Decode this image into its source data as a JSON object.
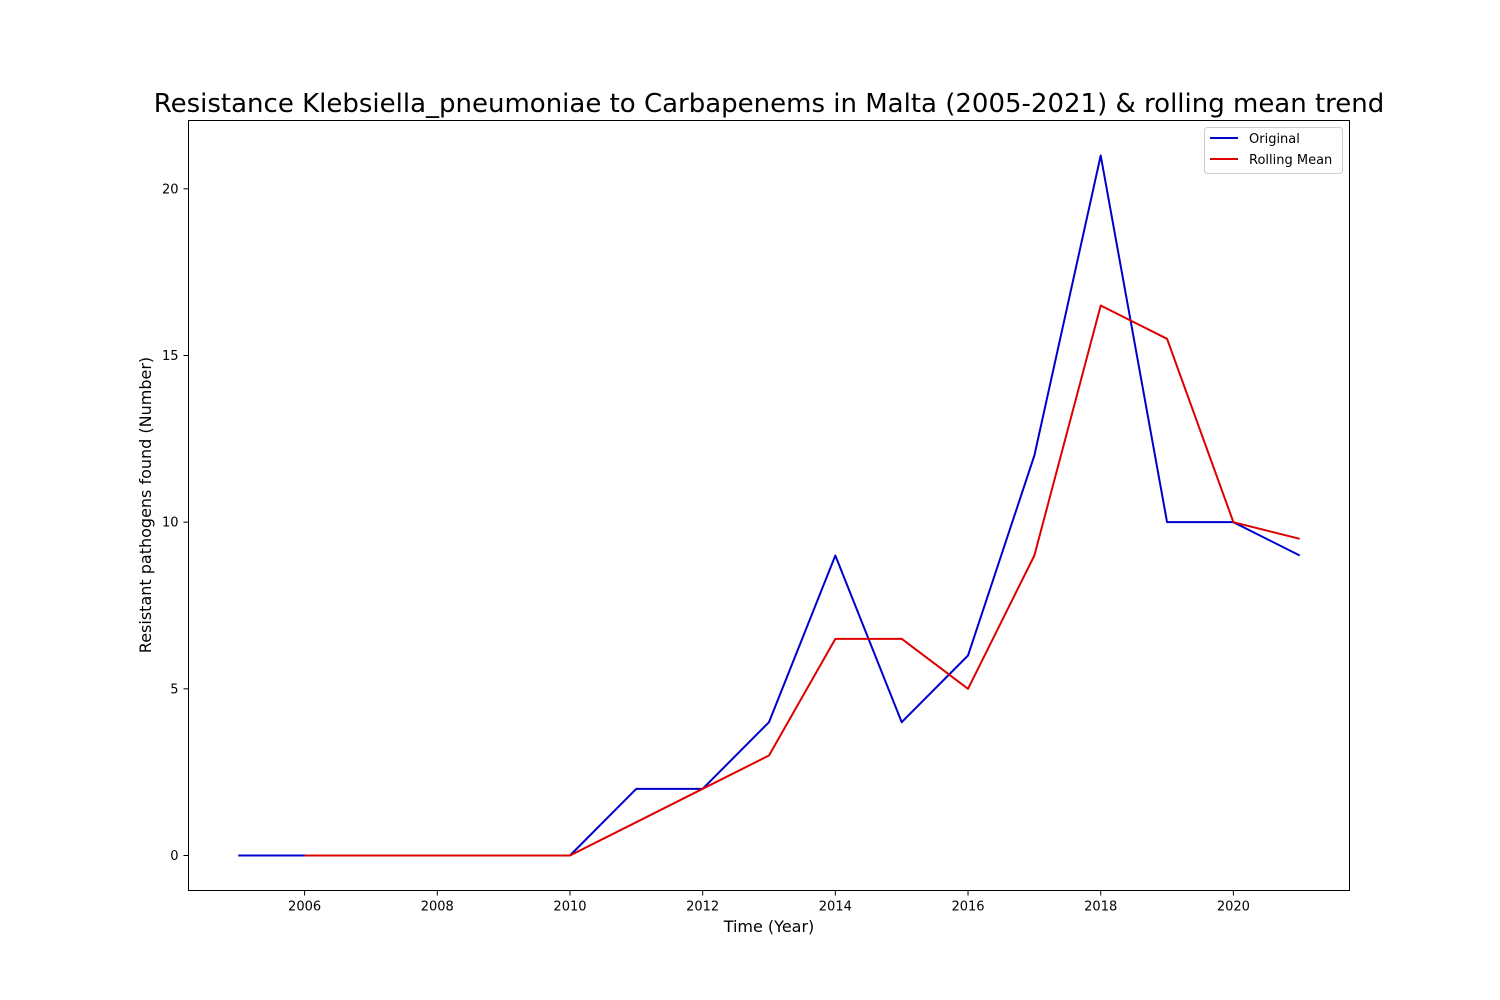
{
  "chart_data": {
    "type": "line",
    "title": "Resistance Klebsiella_pneumoniae to Carbapenems in Malta (2005-2021) & rolling mean trend",
    "xlabel": "Time (Year)",
    "ylabel": "Resistant pathogens found (Number)",
    "xlim": [
      2004.25,
      2021.75
    ],
    "ylim": [
      -1.05,
      22.05
    ],
    "x_ticks": [
      2006,
      2008,
      2010,
      2012,
      2014,
      2016,
      2018,
      2020
    ],
    "y_ticks": [
      0,
      5,
      10,
      15,
      20
    ],
    "grid": false,
    "legend_position": "top-right",
    "series": [
      {
        "name": "Original",
        "color": "#0000cc",
        "x": [
          2005,
          2006,
          2007,
          2008,
          2009,
          2010,
          2011,
          2012,
          2013,
          2014,
          2015,
          2016,
          2017,
          2018,
          2019,
          2020,
          2021
        ],
        "y": [
          0,
          0,
          0,
          0,
          0,
          0,
          2,
          2,
          4,
          9,
          4,
          6,
          12,
          21,
          10,
          10,
          9
        ]
      },
      {
        "name": "Rolling Mean",
        "color": "#dd0000",
        "x": [
          2006,
          2007,
          2008,
          2009,
          2010,
          2011,
          2012,
          2013,
          2014,
          2015,
          2016,
          2017,
          2018,
          2019,
          2020,
          2021
        ],
        "y": [
          0,
          0,
          0,
          0,
          0,
          1,
          2,
          3,
          6.5,
          6.5,
          5,
          9,
          16.5,
          15.5,
          10,
          9.5
        ]
      }
    ]
  }
}
